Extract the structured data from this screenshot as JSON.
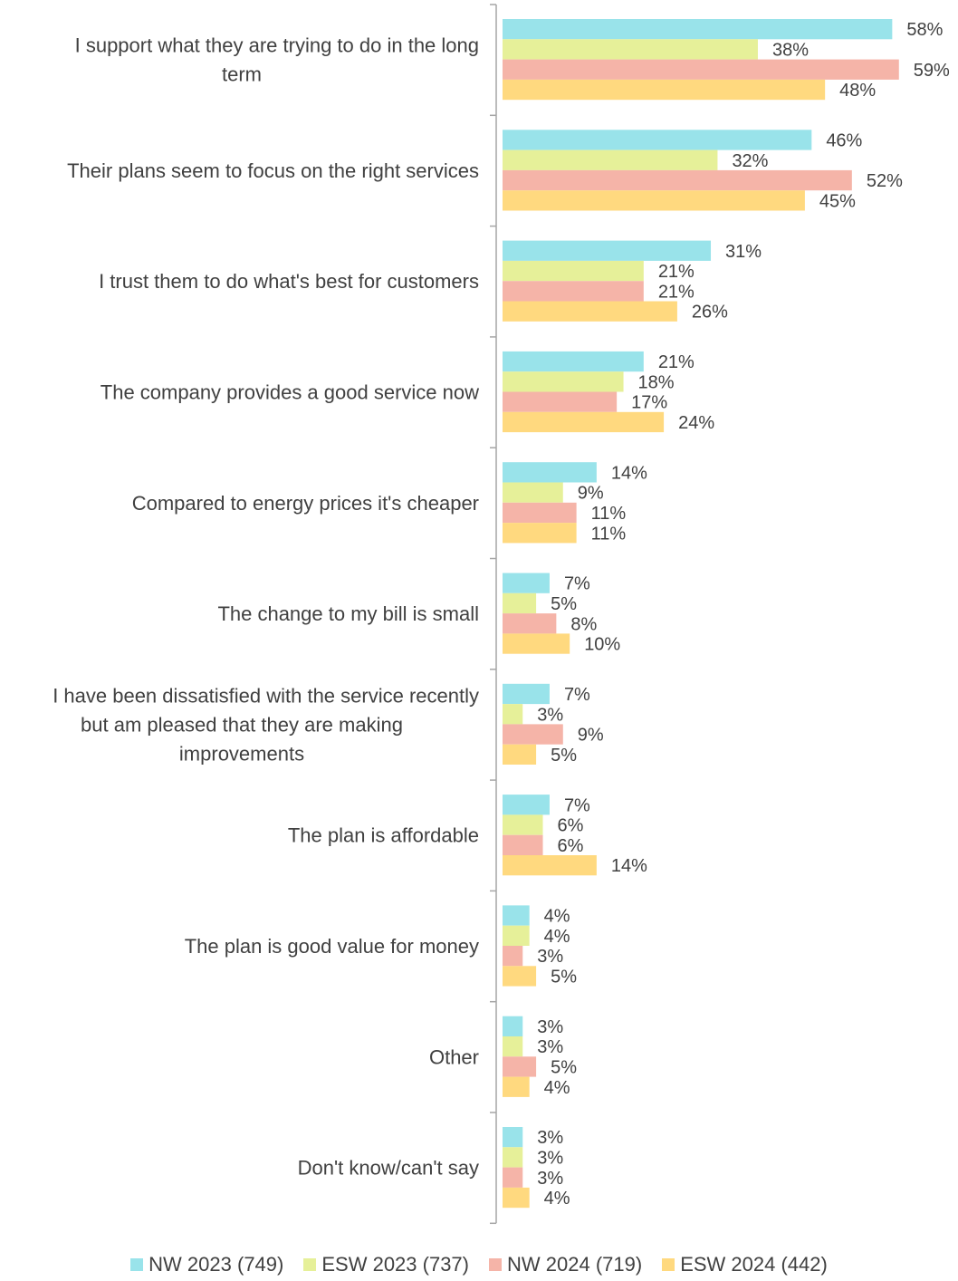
{
  "chart_data": {
    "type": "bar",
    "orientation": "horizontal",
    "categories": [
      "I support what they are trying to do in the long term",
      "Their plans seem to focus on the right services",
      "I trust them to do what's best for customers",
      "The company provides a good service now",
      "Compared to energy prices it's cheaper",
      "The change to my bill is small",
      "I have been dissatisfied with the service recently but am pleased that they are making improvements",
      "The plan is affordable",
      "The plan is good value for money",
      "Other",
      "Don't know/can't say"
    ],
    "category_lines": [
      [
        "I support what they are trying to do in the long",
        "term"
      ],
      [
        "Their plans seem to focus on the right services"
      ],
      [
        "I trust them to do what's best for customers"
      ],
      [
        "The company provides a good service now"
      ],
      [
        "Compared to energy prices it's cheaper"
      ],
      [
        "The change to my bill is small"
      ],
      [
        "I have been dissatisfied with the service recently",
        "but am pleased that they are making",
        "improvements"
      ],
      [
        "The plan is affordable"
      ],
      [
        "The plan is good value for money"
      ],
      [
        "Other"
      ],
      [
        "Don't know/can't say"
      ]
    ],
    "series": [
      {
        "name": "NW 2023 (749)",
        "color": "#99E3EA",
        "values": [
          58,
          46,
          31,
          21,
          14,
          7,
          7,
          7,
          4,
          3,
          3
        ]
      },
      {
        "name": "ESW 2023 (737)",
        "color": "#E6F099",
        "values": [
          38,
          32,
          21,
          18,
          9,
          5,
          3,
          6,
          4,
          3,
          3
        ]
      },
      {
        "name": "NW 2024 (719)",
        "color": "#F5B4A8",
        "values": [
          59,
          52,
          21,
          17,
          11,
          8,
          9,
          6,
          3,
          5,
          3
        ]
      },
      {
        "name": "ESW 2024 (442)",
        "color": "#FFD97F",
        "values": [
          48,
          45,
          26,
          24,
          11,
          10,
          5,
          14,
          5,
          4,
          4
        ]
      }
    ],
    "value_suffix": "%",
    "xlim": [
      0,
      60
    ],
    "grid": false,
    "legend_position": "bottom",
    "title": "",
    "xlabel": "",
    "ylabel": ""
  }
}
